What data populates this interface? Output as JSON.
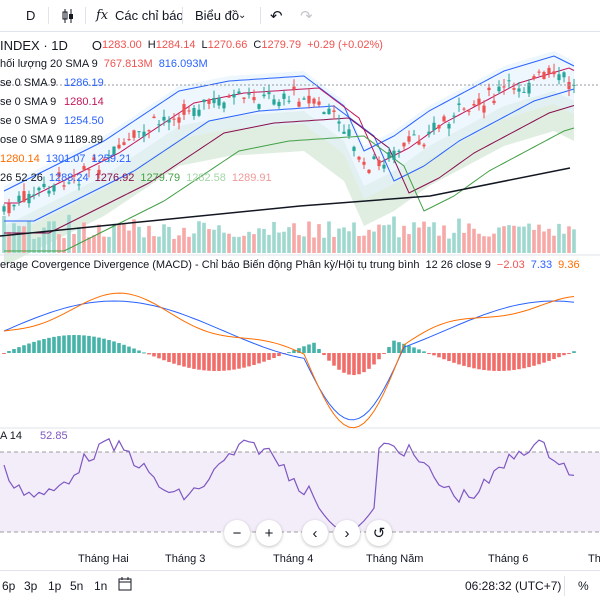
{
  "toolbar": {
    "interval": "D",
    "indicators_label": "Các chỉ báo",
    "chart_type_label": "Biểu đồ",
    "fx_glyph": "fx"
  },
  "header": {
    "symbol": "INDEX · 1D",
    "o_label": "O",
    "o_value": "1283.00",
    "h_label": "H",
    "h_value": "1284.14",
    "l_label": "L",
    "l_value": "1270.66",
    "c_label": "C",
    "c_value": "1279.79",
    "change": "+0.29 (+0.02%)"
  },
  "legends": {
    "volume": {
      "label": "hối lượng 20 SMA 9",
      "v1": "767.813M",
      "v2": "816.093M"
    },
    "ma1": {
      "label": "se 0 SMA 9",
      "v1": "1286.19"
    },
    "ma2": {
      "label": "se 0 SMA 9",
      "v1": "1280.14"
    },
    "ma3": {
      "label": "se 0 SMA 9",
      "v1": "1254.50"
    },
    "ma4": {
      "label": "ose 0 SMA 9",
      "v1": "1189.89"
    },
    "bb": {
      "v1": "1280.14",
      "v2": "1301.07",
      "v3": "1259.21"
    },
    "ichimoku": {
      "label": "26 52 26",
      "v1": "1288.24",
      "v2": "1276.92",
      "v3": "1279.79",
      "v4": "1282.58",
      "v5": "1289.91"
    }
  },
  "macd": {
    "title": "erage Covergence Divergence (MACD) - Chỉ báo Biến động Phân kỳ/Hội tụ trung bình",
    "params": "12 26 close 9",
    "v1": "−2.03",
    "v2": "7.33",
    "v3": "9.36"
  },
  "rsi": {
    "label": "A 14",
    "value": "52.85"
  },
  "nav": {
    "zoom_out": "−",
    "zoom_in": "+",
    "prev": "‹",
    "next": "›",
    "reset": "↺"
  },
  "xaxis": {
    "labels": [
      "Tháng Hai",
      "Tháng 3",
      "Tháng 4",
      "Tháng Năm",
      "Tháng 6",
      "Tháng"
    ]
  },
  "bottom": {
    "ranges": [
      "6p",
      "3p",
      "1p",
      "5n",
      "1n"
    ],
    "time": "06:28:32 (UTC+7)",
    "percent": "%"
  },
  "colors": {
    "up": "#26a69a",
    "down": "#ef5350",
    "volume_up": "#9fd8cf",
    "volume_down": "#f7a9a7",
    "rsi_line": "#7e57c2",
    "rsi_band": "#ede7f6",
    "macd_line": "#2962ff",
    "signal_line": "#ff6d00",
    "ichimoku_cloud": "#d8ead9",
    "bb_fill": "#e3f2fd"
  }
}
